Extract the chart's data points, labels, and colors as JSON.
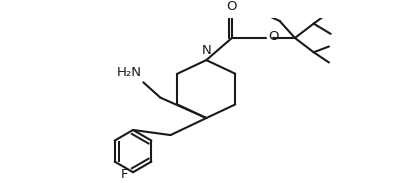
{
  "bg_color": "#ffffff",
  "line_color": "#1a1a1a",
  "line_width": 1.5,
  "figsize": [
    3.99,
    1.83
  ],
  "dpi": 100,
  "xlim": [
    0,
    10
  ],
  "ylim": [
    0,
    4.8
  ]
}
